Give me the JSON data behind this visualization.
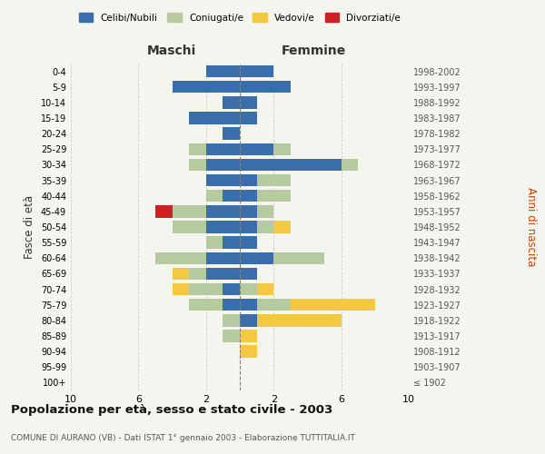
{
  "age_groups": [
    "0-4",
    "5-9",
    "10-14",
    "15-19",
    "20-24",
    "25-29",
    "30-34",
    "35-39",
    "40-44",
    "45-49",
    "50-54",
    "55-59",
    "60-64",
    "65-69",
    "70-74",
    "75-79",
    "80-84",
    "85-89",
    "90-94",
    "95-99",
    "100+"
  ],
  "birth_years": [
    "1998-2002",
    "1993-1997",
    "1988-1992",
    "1983-1987",
    "1978-1982",
    "1973-1977",
    "1968-1972",
    "1963-1967",
    "1958-1962",
    "1953-1957",
    "1948-1952",
    "1943-1947",
    "1938-1942",
    "1933-1937",
    "1928-1932",
    "1923-1927",
    "1918-1922",
    "1913-1917",
    "1908-1912",
    "1903-1907",
    "≤ 1902"
  ],
  "maschi": {
    "celibi": [
      2,
      4,
      1,
      3,
      1,
      2,
      2,
      2,
      1,
      2,
      2,
      1,
      2,
      2,
      1,
      1,
      0,
      0,
      0,
      0,
      0
    ],
    "coniugati": [
      0,
      0,
      0,
      0,
      0,
      1,
      1,
      0,
      1,
      2,
      2,
      1,
      3,
      1,
      2,
      2,
      1,
      1,
      0,
      0,
      0
    ],
    "vedovi": [
      0,
      0,
      0,
      0,
      0,
      0,
      0,
      0,
      0,
      0,
      0,
      0,
      0,
      1,
      1,
      0,
      0,
      0,
      0,
      0,
      0
    ],
    "divorziati": [
      0,
      0,
      0,
      0,
      0,
      0,
      0,
      0,
      0,
      1,
      0,
      0,
      0,
      0,
      0,
      0,
      0,
      0,
      0,
      0,
      0
    ]
  },
  "femmine": {
    "nubili": [
      2,
      3,
      1,
      1,
      0,
      2,
      6,
      1,
      1,
      1,
      1,
      1,
      2,
      1,
      0,
      1,
      1,
      0,
      0,
      0,
      0
    ],
    "coniugate": [
      0,
      0,
      0,
      0,
      0,
      1,
      1,
      2,
      2,
      1,
      1,
      0,
      3,
      0,
      1,
      2,
      0,
      0,
      0,
      0,
      0
    ],
    "vedove": [
      0,
      0,
      0,
      0,
      0,
      0,
      0,
      0,
      0,
      0,
      1,
      0,
      0,
      0,
      1,
      5,
      5,
      1,
      1,
      0,
      0
    ],
    "divorziate": [
      0,
      0,
      0,
      0,
      0,
      0,
      0,
      0,
      0,
      0,
      0,
      0,
      0,
      0,
      0,
      0,
      0,
      0,
      0,
      0,
      0
    ]
  },
  "colors": {
    "celibi_nubili": "#3a6eaa",
    "coniugati": "#b5ca9e",
    "vedovi": "#f5c842",
    "divorziati": "#cc2222"
  },
  "title": "Popolazione per età, sesso e stato civile - 2003",
  "subtitle": "COMUNE DI AURANO (VB) - Dati ISTAT 1° gennaio 2003 - Elaborazione TUTTITALIA.IT",
  "xlabel_left": "Maschi",
  "xlabel_right": "Femmine",
  "ylabel_left": "Fasce di età",
  "ylabel_right": "Anni di nascita",
  "xlim": 10,
  "background_color": "#f5f5f0",
  "grid_color": "#cccccc"
}
